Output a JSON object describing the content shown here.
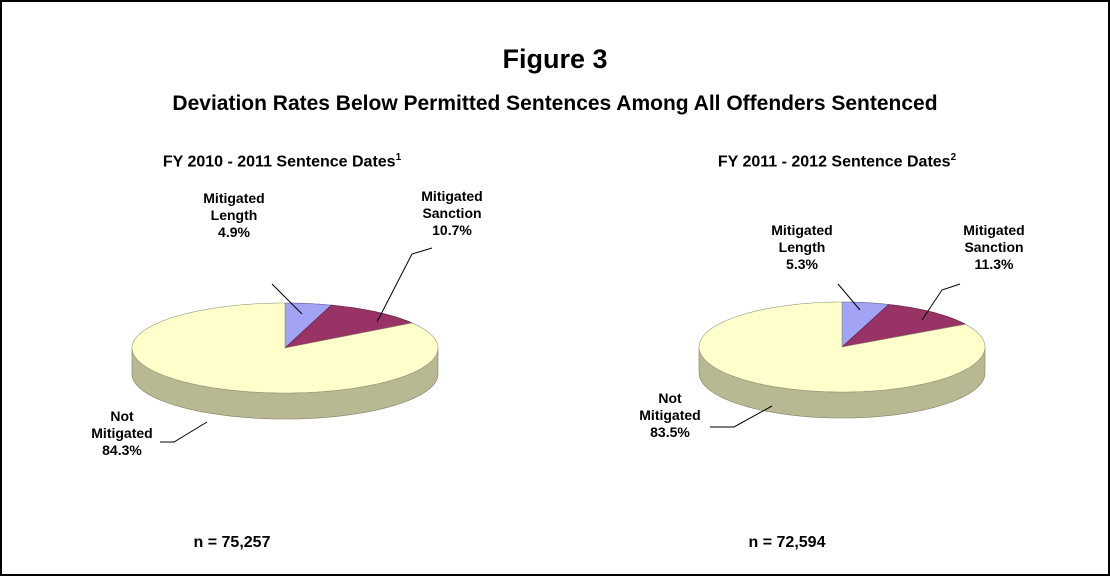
{
  "figure": {
    "title": "Figure 3",
    "subtitle": "Deviation Rates Below Permitted Sentences Among All Offenders Sentenced"
  },
  "chart_data": [
    {
      "type": "pie",
      "title": "FY 2010 - 2011 Sentence Dates",
      "title_note": "1",
      "categories": [
        "Mitigated Length",
        "Mitigated Sanction",
        "Not Mitigated"
      ],
      "values": [
        4.9,
        10.7,
        84.3
      ],
      "value_labels": [
        "4.9%",
        "10.7%",
        "84.3%"
      ],
      "colors": [
        "#a3a3f5",
        "#993366",
        "#ffffcc"
      ],
      "note": "n = 75,257"
    },
    {
      "type": "pie",
      "title": "FY 2011 - 2012 Sentence Dates",
      "title_note": "2",
      "categories": [
        "Mitigated Length",
        "Mitigated Sanction",
        "Not Mitigated"
      ],
      "values": [
        5.3,
        11.3,
        83.5
      ],
      "value_labels": [
        "5.3%",
        "11.3%",
        "83.5%"
      ],
      "colors": [
        "#a3a3f5",
        "#993366",
        "#ffffcc"
      ],
      "note": "n = 72,594"
    }
  ]
}
